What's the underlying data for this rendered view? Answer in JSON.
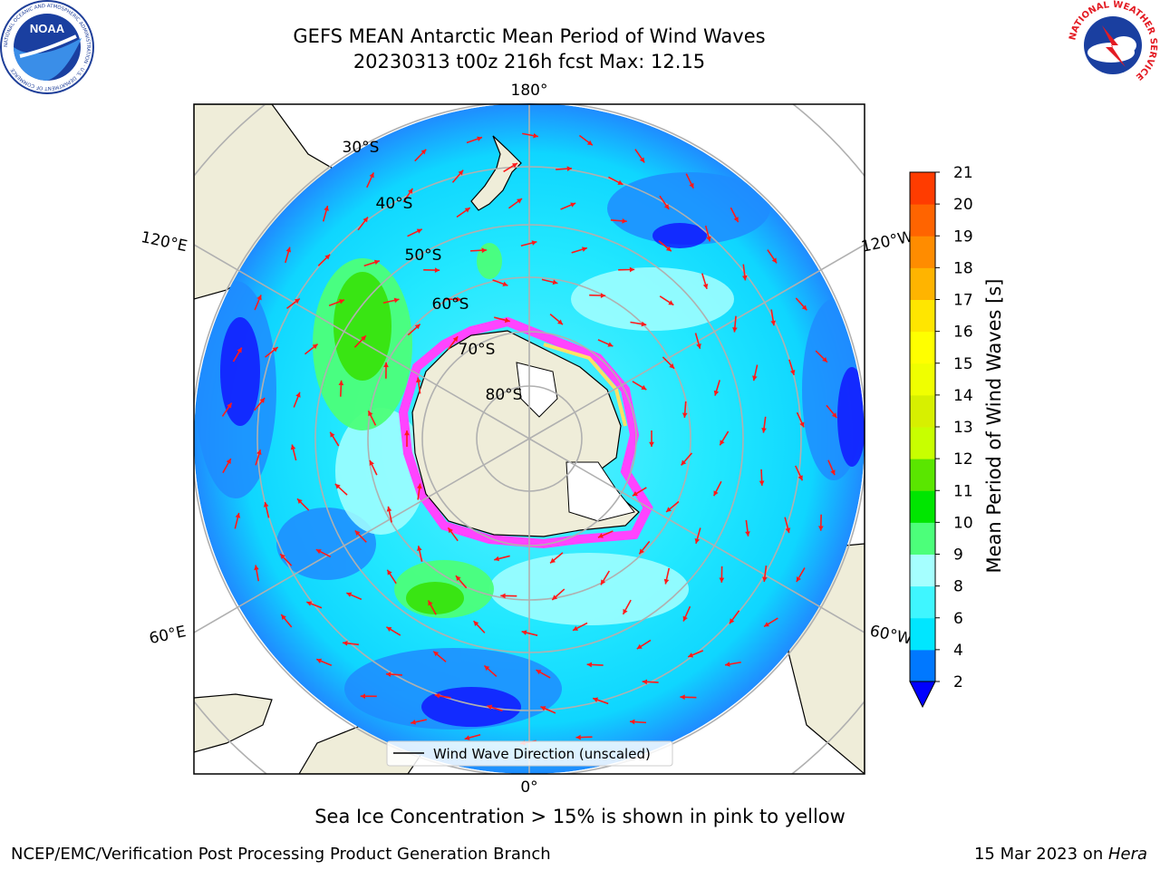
{
  "header": {
    "title_line1": "GEFS MEAN Antarctic Mean Period of Wind Waves",
    "title_line2": "20230313 t00z 216h fcst   Max: 12.15"
  },
  "map": {
    "projection": "south-polar-stereographic",
    "lon_labels": [
      "180°",
      "120°E",
      "120°W",
      "60°E",
      "60°W",
      "0°"
    ],
    "lat_labels": [
      "30°S",
      "40°S",
      "50°S",
      "60°S",
      "70°S",
      "80°S"
    ],
    "legend_label": "Wind Wave Direction (unscaled)",
    "land_color": "#efedd9",
    "arrow_color": "#ff1a1a",
    "sea_ice_colors": [
      "#ff44ff",
      "#ff9966",
      "#ffe066"
    ]
  },
  "colorbar": {
    "title": "Mean Period of Wind Waves [s]",
    "ticks": [
      "2",
      "4",
      "6",
      "8",
      "9",
      "10",
      "11",
      "12",
      "13",
      "14",
      "15",
      "16",
      "17",
      "18",
      "19",
      "20",
      "21"
    ],
    "colors": [
      "#0078ff",
      "#00e6ff",
      "#3ff6ff",
      "#a5ffff",
      "#4cff7a",
      "#00e600",
      "#5ae600",
      "#c8ff00",
      "#d7f000",
      "#f0ff00",
      "#ffff00",
      "#ffe600",
      "#ffb400",
      "#ff8c00",
      "#ff6400",
      "#ff3c00",
      "#ff0000"
    ],
    "under_color": "#0000ff"
  },
  "footer": {
    "sea_ice_note": "Sea Ice Concentration > 15% is shown in pink to yellow",
    "credit": "NCEP/EMC/Verification Post Processing Product Generation Branch",
    "date": "15 Mar 2023 on ",
    "machine": "Hera"
  },
  "logos": {
    "noaa_text": "NOAA",
    "noaa_ring_text": "NATIONAL OCEANIC AND ATMOSPHERIC ADMINISTRATION · U.S. DEPARTMENT OF COMMERCE",
    "nws_ring_text": "NATIONAL WEATHER SERVICE"
  }
}
